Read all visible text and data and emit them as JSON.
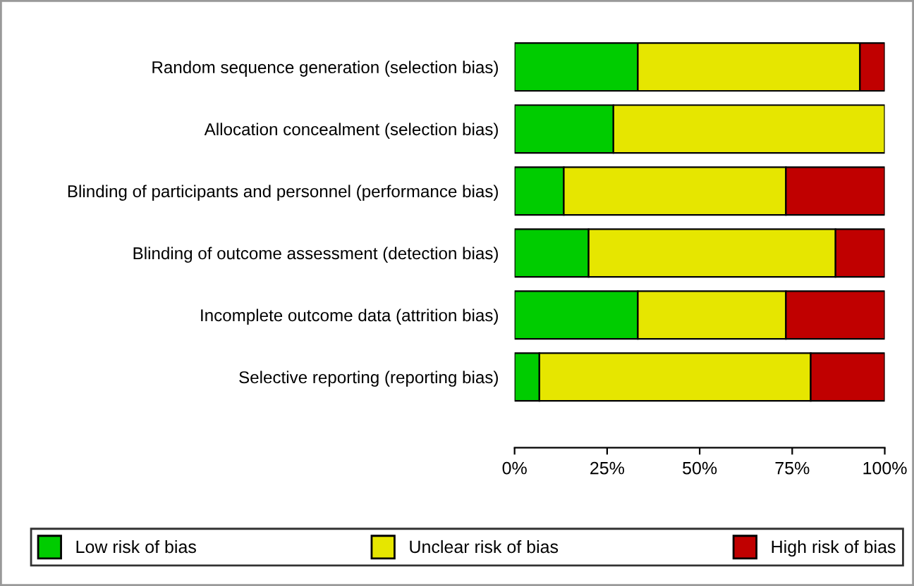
{
  "chart_data": {
    "type": "bar",
    "orientation": "horizontal",
    "stacked": true,
    "categories": [
      "Random sequence generation (selection bias)",
      "Allocation concealment (selection bias)",
      "Blinding of participants and personnel (performance bias)",
      "Blinding of outcome assessment (detection bias)",
      "Incomplete outcome data (attrition bias)",
      "Selective reporting (reporting bias)"
    ],
    "series": [
      {
        "name": "Low risk of bias",
        "color": "#00cc00",
        "values": [
          33.3,
          26.7,
          13.3,
          20,
          33.3,
          6.7
        ]
      },
      {
        "name": "Unclear risk of bias",
        "color": "#e6e600",
        "values": [
          60,
          73.3,
          60,
          66.7,
          40,
          73.3
        ]
      },
      {
        "name": "High risk of bias",
        "color": "#c00000",
        "values": [
          6.7,
          null,
          26.7,
          13.3,
          26.7,
          20
        ]
      }
    ],
    "xlim": [
      0,
      100
    ],
    "xticks": [
      {
        "value": 0,
        "label": "0%"
      },
      {
        "value": 25,
        "label": "25%"
      },
      {
        "value": 50,
        "label": "50%"
      },
      {
        "value": 75,
        "label": "75%"
      },
      {
        "value": 100,
        "label": "100%"
      }
    ],
    "legend": "bottom",
    "grid": false
  }
}
